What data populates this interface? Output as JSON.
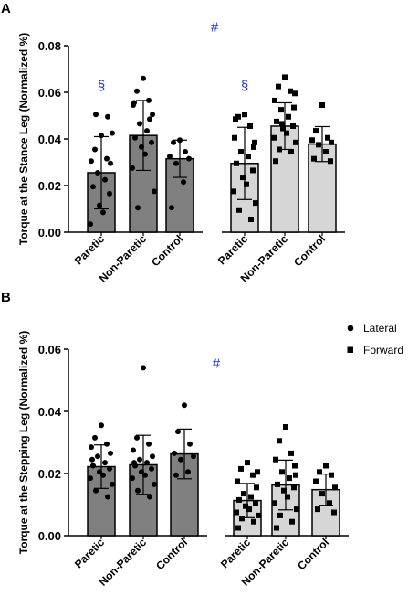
{
  "colors": {
    "paretic_group_bar": "#808080",
    "control_group_bar": "#d6d6d6",
    "annotation": "#1f2fd0",
    "ink": "#000000"
  },
  "chart_data": [
    {
      "panel": "A",
      "type": "bar",
      "ylabel": "Torque at the Stance Leg (Normalized %)",
      "ylim": [
        0,
        0.08
      ],
      "yticks": [
        "0.00",
        "0.02",
        "0.04",
        "0.06",
        "0.08"
      ],
      "categories": [
        "Paretic",
        "Non-Paretic",
        "Control",
        "Paretic",
        "Non-Paretic",
        "Control"
      ],
      "marker_shapes": [
        "circle",
        "circle",
        "circle",
        "square",
        "square",
        "square"
      ],
      "values": [
        0.0255,
        0.0415,
        0.0315,
        0.0295,
        0.0455,
        0.0378
      ],
      "error_sd": [
        0.0155,
        0.015,
        0.008,
        0.0155,
        0.01,
        0.0075
      ],
      "points": [
        [
          0.0415,
          0.0355,
          0.0315,
          0.0305,
          0.0295,
          0.0255,
          0.0225,
          0.0195,
          0.0165,
          0.0115,
          0.0085,
          0.0035,
          0.0425,
          0.0505,
          0.0495
        ],
        [
          0.066,
          0.0605,
          0.0565,
          0.0545,
          0.0505,
          0.0465,
          0.0435,
          0.0405,
          0.0385,
          0.0365,
          0.0335,
          0.0275,
          0.0175,
          0.0105,
          0.0485,
          0.0555
        ],
        [
          0.0395,
          0.0385,
          0.0345,
          0.0325,
          0.0315,
          0.0295,
          0.0215,
          0.0105
        ],
        [
          0.0505,
          0.0495,
          0.0455,
          0.0405,
          0.0365,
          0.0345,
          0.0325,
          0.0295,
          0.0265,
          0.0235,
          0.0205,
          0.0175,
          0.0125,
          0.0095,
          0.0055,
          0.0485,
          0.0385
        ],
        [
          0.0665,
          0.0625,
          0.0605,
          0.0565,
          0.0535,
          0.0525,
          0.0495,
          0.0475,
          0.0455,
          0.0445,
          0.0425,
          0.0405,
          0.0385,
          0.0355,
          0.0345,
          0.0305,
          0.0595,
          0.0465
        ],
        [
          0.0545,
          0.0435,
          0.0405,
          0.0395,
          0.0385,
          0.0375,
          0.0345,
          0.0315,
          0.0305
        ]
      ],
      "annotations": [
        {
          "text": "§",
          "group": 0,
          "value": 0.061
        },
        {
          "text": "§",
          "group": 3,
          "value": 0.061
        },
        {
          "text": "#",
          "group": "middle",
          "value": 0.086
        }
      ]
    },
    {
      "panel": "B",
      "type": "bar",
      "ylabel": "Torque at the Stepping Leg (Normalized %)",
      "ylim": [
        0,
        0.06
      ],
      "yticks": [
        "0.00",
        "0.02",
        "0.04",
        "0.06"
      ],
      "categories": [
        "Paretic",
        "Non-Paretic",
        "Control",
        "Paretic",
        "Non-Paretic",
        "Control"
      ],
      "marker_shapes": [
        "circle",
        "circle",
        "circle",
        "square",
        "square",
        "square"
      ],
      "values": [
        0.0222,
        0.0228,
        0.0263,
        0.0113,
        0.0163,
        0.0148
      ],
      "error_sd": [
        0.007,
        0.0095,
        0.008,
        0.0055,
        0.008,
        0.005
      ],
      "points": [
        [
          0.0355,
          0.0315,
          0.0295,
          0.0285,
          0.0265,
          0.0255,
          0.0235,
          0.0225,
          0.0215,
          0.0205,
          0.0195,
          0.0185,
          0.0165,
          0.0145,
          0.0125,
          0.0245
        ],
        [
          0.054,
          0.0315,
          0.0295,
          0.0275,
          0.0255,
          0.0245,
          0.0235,
          0.0225,
          0.0215,
          0.0205,
          0.0195,
          0.0185,
          0.0165,
          0.0145,
          0.0125,
          0.0235
        ],
        [
          0.042,
          0.0335,
          0.0295,
          0.0265,
          0.0255,
          0.0245,
          0.0205,
          0.0195
        ],
        [
          0.0235,
          0.0215,
          0.0195,
          0.0175,
          0.0155,
          0.0135,
          0.0125,
          0.0115,
          0.0105,
          0.0095,
          0.0085,
          0.0075,
          0.0065,
          0.0055,
          0.0045,
          0.0025,
          0.0205
        ],
        [
          0.035,
          0.0305,
          0.0265,
          0.0245,
          0.0225,
          0.0205,
          0.0185,
          0.0165,
          0.0155,
          0.0145,
          0.0125,
          0.0105,
          0.0085,
          0.0065,
          0.0045,
          0.0025,
          0.0195
        ],
        [
          0.0225,
          0.0205,
          0.0195,
          0.0175,
          0.0155,
          0.0135,
          0.0105,
          0.0085,
          0.0075
        ]
      ],
      "annotations": [
        {
          "text": "#",
          "group": "middle",
          "value": 0.054
        }
      ]
    }
  ],
  "legend": {
    "entries": [
      {
        "label": "Lateral",
        "shape": "circle"
      },
      {
        "label": "Forward",
        "shape": "square"
      }
    ]
  }
}
